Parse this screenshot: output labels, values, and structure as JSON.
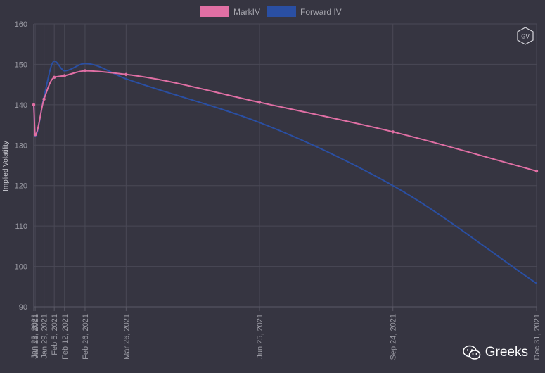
{
  "chart_data": {
    "type": "line",
    "title": "",
    "xlabel": "",
    "ylabel": "Implied Volatility",
    "ylim": [
      90,
      160
    ],
    "yticks": [
      90,
      100,
      110,
      120,
      130,
      140,
      150,
      160
    ],
    "grid": true,
    "legend_position": "top-center",
    "x": [
      "Jan 22, 2021",
      "Jan 23, 2021",
      "Jan 29, 2021",
      "Feb 5, 2021",
      "Feb 12, 2021",
      "Feb 26, 2021",
      "Mar 26, 2021",
      "Jun 25, 2021",
      "Sep 24, 2021",
      "Dec 31, 2021"
    ],
    "x_dates": [
      "2021-01-22",
      "2021-01-23",
      "2021-01-29",
      "2021-02-05",
      "2021-02-12",
      "2021-02-26",
      "2021-03-26",
      "2021-06-25",
      "2021-09-24",
      "2021-12-31"
    ],
    "series": [
      {
        "name": "MarkIV",
        "color": "#e06fa4",
        "values": [
          140.0,
          132.6,
          141.4,
          146.8,
          147.2,
          148.4,
          147.5,
          140.6,
          133.3,
          123.6
        ],
        "show_points": true
      },
      {
        "name": "Forward IV",
        "color": "#2a4fa3",
        "values": [
          140.0,
          132.2,
          142.0,
          150.8,
          148.4,
          150.2,
          146.4,
          135.6,
          120.0,
          95.8
        ],
        "show_points": false
      }
    ]
  },
  "watermark": {
    "text": "Greeks"
  },
  "logo": {
    "text": "GV"
  }
}
